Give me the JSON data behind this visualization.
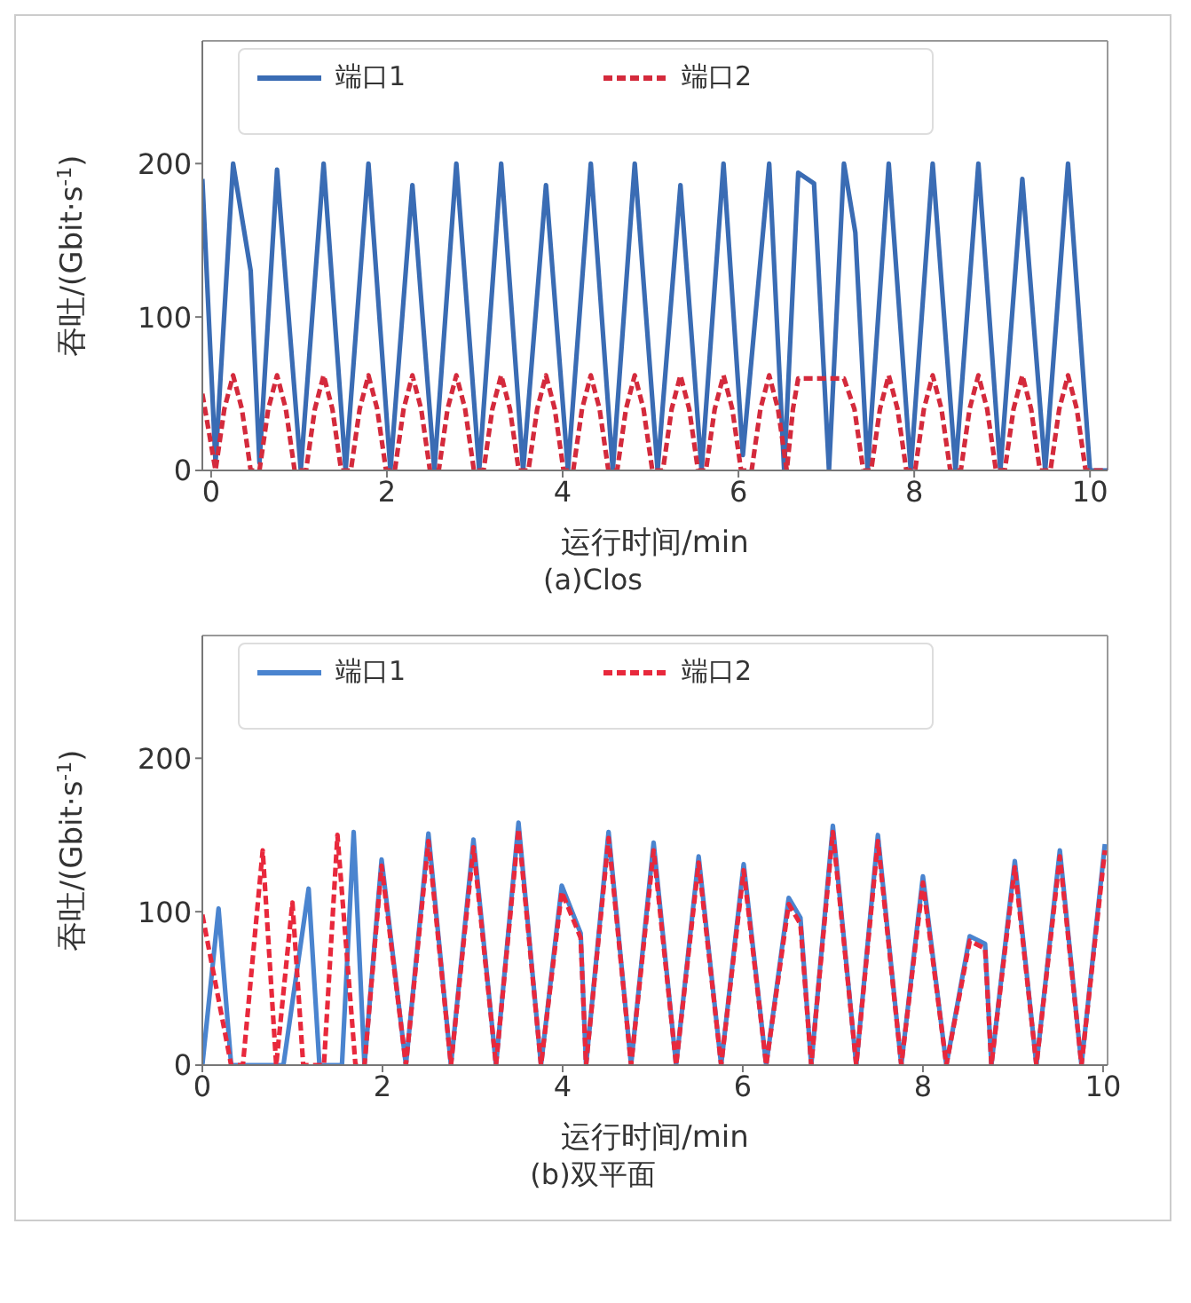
{
  "chart_data": [
    {
      "type": "line",
      "title": "(a)Clos",
      "xlabel": "运行时间/min",
      "ylabel": "吞吐/(Gbit·s$^{-1}$)",
      "xlim": [
        -0.1,
        10.2
      ],
      "xticks": [
        0,
        2,
        4,
        6,
        8,
        10
      ],
      "ylim": [
        0,
        280
      ],
      "yticks": [
        0,
        100,
        200
      ],
      "grid": false,
      "legend": "top",
      "marker": "none",
      "series": [
        {
          "name": "端口1",
          "color": "#3a6cb4",
          "line_style": "solid",
          "x": [
            -0.1,
            0.05,
            0.25,
            0.45,
            0.55,
            0.75,
            1.02,
            1.28,
            1.53,
            1.79,
            2.04,
            2.29,
            2.54,
            2.79,
            3.05,
            3.3,
            3.55,
            3.81,
            4.06,
            4.32,
            4.57,
            4.82,
            5.08,
            5.34,
            5.58,
            5.83,
            6.05,
            6.35,
            6.52,
            6.68,
            6.86,
            7.03,
            7.2,
            7.33,
            7.47,
            7.71,
            7.96,
            8.21,
            8.47,
            8.73,
            8.98,
            9.23,
            9.49,
            9.75,
            10.0,
            10.2
          ],
          "values": [
            190,
            5,
            200,
            130,
            5,
            196,
            0,
            200,
            0,
            200,
            0,
            186,
            0,
            200,
            0,
            200,
            0,
            186,
            0,
            200,
            0,
            200,
            0,
            186,
            0,
            200,
            10,
            200,
            0,
            194,
            187,
            0,
            200,
            155,
            0,
            200,
            0,
            200,
            0,
            200,
            0,
            190,
            0,
            200,
            0,
            0
          ]
        },
        {
          "name": "端口2",
          "color": "#d42a3c",
          "line_style": "dashed",
          "x": [
            -0.1,
            0.05,
            0.15,
            0.25,
            0.35,
            0.45,
            0.55,
            0.65,
            0.75,
            0.85,
            0.95,
            1.08,
            1.18,
            1.28,
            1.38,
            1.48,
            1.59,
            1.69,
            1.79,
            1.89,
            1.99,
            2.09,
            2.19,
            2.29,
            2.39,
            2.49,
            2.59,
            2.69,
            2.79,
            2.89,
            2.99,
            3.1,
            3.2,
            3.3,
            3.4,
            3.5,
            3.61,
            3.71,
            3.81,
            3.91,
            4.01,
            4.12,
            4.22,
            4.32,
            4.42,
            4.52,
            4.62,
            4.72,
            4.82,
            4.92,
            5.02,
            5.14,
            5.24,
            5.34,
            5.44,
            5.54,
            5.63,
            5.73,
            5.83,
            5.93,
            6.03,
            6.15,
            6.25,
            6.35,
            6.45,
            6.55,
            6.62,
            6.68,
            6.86,
            7.2,
            7.32,
            7.42,
            7.51,
            7.61,
            7.71,
            7.81,
            7.91,
            8.01,
            8.11,
            8.21,
            8.31,
            8.41,
            8.53,
            8.63,
            8.73,
            8.83,
            8.93,
            9.03,
            9.13,
            9.23,
            9.33,
            9.43,
            9.55,
            9.65,
            9.75,
            9.85,
            9.95,
            10.2
          ],
          "values": [
            50,
            0,
            40,
            62,
            40,
            0,
            0,
            40,
            62,
            40,
            0,
            0,
            40,
            62,
            40,
            0,
            0,
            40,
            62,
            40,
            0,
            0,
            40,
            62,
            40,
            0,
            0,
            40,
            62,
            40,
            0,
            0,
            40,
            62,
            40,
            0,
            0,
            40,
            62,
            40,
            0,
            0,
            40,
            62,
            40,
            0,
            0,
            40,
            62,
            40,
            0,
            0,
            40,
            62,
            40,
            0,
            0,
            40,
            62,
            40,
            0,
            0,
            40,
            62,
            40,
            0,
            40,
            60,
            60,
            60,
            40,
            0,
            0,
            40,
            62,
            40,
            0,
            0,
            40,
            62,
            40,
            0,
            0,
            40,
            62,
            40,
            0,
            0,
            40,
            62,
            40,
            0,
            0,
            40,
            62,
            40,
            0,
            0
          ]
        }
      ]
    },
    {
      "type": "line",
      "title": "(b)双平面",
      "xlabel": "运行时间/min",
      "ylabel": "吞吐/(Gbit·s$^{-1}$)",
      "xlim": [
        0,
        10.05
      ],
      "xticks": [
        0,
        2,
        4,
        6,
        8,
        10
      ],
      "ylim": [
        0,
        280
      ],
      "yticks": [
        0,
        100,
        200
      ],
      "grid": false,
      "legend": "top",
      "marker": "none",
      "series": [
        {
          "name": "端口1",
          "color": "#4a84cf",
          "line_style": "solid",
          "x": [
            0,
            0.18,
            0.32,
            0.9,
            1.18,
            1.3,
            1.55,
            1.68,
            1.8,
            1.99,
            2.26,
            2.51,
            2.76,
            3.01,
            3.26,
            3.51,
            3.76,
            3.99,
            4.2,
            4.26,
            4.51,
            4.76,
            5.01,
            5.26,
            5.51,
            5.76,
            6.01,
            6.26,
            6.51,
            6.64,
            6.76,
            7.0,
            7.26,
            7.5,
            7.76,
            8.0,
            8.26,
            8.52,
            8.69,
            8.76,
            9.02,
            9.26,
            9.52,
            9.76,
            10.02
          ],
          "values": [
            0,
            102,
            0,
            0,
            115,
            0,
            0,
            152,
            0,
            134,
            0,
            151,
            0,
            147,
            0,
            158,
            0,
            117,
            86,
            0,
            152,
            0,
            145,
            0,
            136,
            0,
            131,
            0,
            109,
            96,
            0,
            156,
            0,
            150,
            0,
            123,
            0,
            84,
            79,
            0,
            133,
            0,
            140,
            0,
            144
          ]
        },
        {
          "name": "端口2",
          "color": "#e8283c",
          "line_style": "dashed",
          "x": [
            0,
            0.32,
            0.45,
            0.67,
            0.82,
            1.0,
            1.12,
            1.35,
            1.5,
            1.7,
            1.8,
            1.99,
            2.26,
            2.51,
            2.76,
            3.01,
            3.26,
            3.51,
            3.76,
            3.99,
            4.2,
            4.26,
            4.51,
            4.76,
            5.01,
            5.26,
            5.51,
            5.76,
            6.01,
            6.26,
            6.51,
            6.64,
            6.76,
            7.0,
            7.26,
            7.5,
            7.76,
            8.0,
            8.26,
            8.52,
            8.69,
            8.76,
            9.02,
            9.26,
            9.52,
            9.76,
            10.02
          ],
          "values": [
            98,
            0,
            0,
            140,
            0,
            106,
            0,
            0,
            150,
            0,
            0,
            130,
            0,
            146,
            0,
            142,
            0,
            154,
            0,
            113,
            83,
            0,
            148,
            0,
            140,
            0,
            132,
            0,
            127,
            0,
            105,
            92,
            0,
            152,
            0,
            146,
            0,
            119,
            0,
            81,
            76,
            0,
            129,
            0,
            136,
            0,
            140
          ]
        }
      ]
    }
  ]
}
